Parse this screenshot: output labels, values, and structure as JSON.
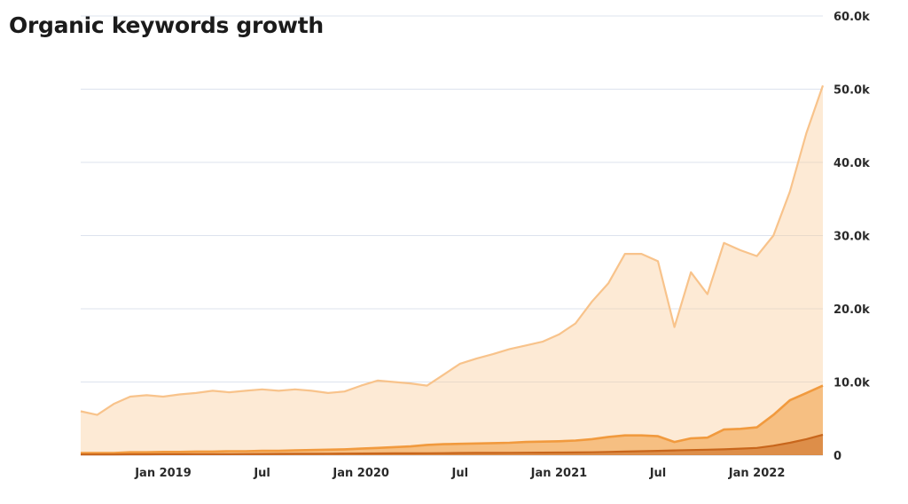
{
  "title": "Organic keywords growth",
  "chart_data": {
    "type": "area",
    "title": "Organic keywords growth",
    "xlabel": "",
    "ylabel": "",
    "ylim": [
      0,
      60000
    ],
    "grid": true,
    "y_axis_position": "right",
    "y_ticks": [
      "0",
      "10.0k",
      "20.0k",
      "30.0k",
      "40.0k",
      "50.0k",
      "60.0k"
    ],
    "x_ticks": [
      "Jan 2019",
      "Jul",
      "Jan 2020",
      "Jul",
      "Jan 2021",
      "Jul",
      "Jan 2022"
    ],
    "x_range": [
      "2018-08",
      "2022-05"
    ],
    "x": [
      "2018-08",
      "2018-09",
      "2018-10",
      "2018-11",
      "2018-12",
      "2019-01",
      "2019-02",
      "2019-03",
      "2019-04",
      "2019-05",
      "2019-06",
      "2019-07",
      "2019-08",
      "2019-09",
      "2019-10",
      "2019-11",
      "2019-12",
      "2020-01",
      "2020-02",
      "2020-03",
      "2020-04",
      "2020-05",
      "2020-06",
      "2020-07",
      "2020-08",
      "2020-09",
      "2020-10",
      "2020-11",
      "2020-12",
      "2021-01",
      "2021-02",
      "2021-03",
      "2021-04",
      "2021-05",
      "2021-06",
      "2021-07",
      "2021-08",
      "2021-09",
      "2021-10",
      "2021-11",
      "2021-12",
      "2022-01",
      "2022-02",
      "2022-03",
      "2022-04",
      "2022-05"
    ],
    "series": [
      {
        "color": "#f8c38b",
        "values": [
          6000,
          5500,
          7000,
          8000,
          8200,
          8000,
          8300,
          8500,
          8800,
          8600,
          8800,
          9000,
          8800,
          9000,
          8800,
          8500,
          8700,
          9500,
          10200,
          10000,
          9800,
          9500,
          11000,
          12500,
          13200,
          13800,
          14500,
          15000,
          15500,
          16500,
          18000,
          21000,
          23500,
          27500,
          27500,
          26500,
          17500,
          25000,
          22000,
          29000,
          28000,
          27200,
          30000,
          36000,
          44000,
          50500
        ]
      },
      {
        "color": "#f19a3e",
        "values": [
          300,
          300,
          300,
          400,
          400,
          450,
          450,
          500,
          500,
          550,
          550,
          600,
          600,
          650,
          700,
          750,
          800,
          900,
          1000,
          1100,
          1200,
          1400,
          1500,
          1550,
          1600,
          1650,
          1700,
          1800,
          1850,
          1900,
          2000,
          2200,
          2500,
          2700,
          2700,
          2600,
          1800,
          2300,
          2400,
          3500,
          3600,
          3800,
          5500,
          7500,
          8500,
          9500
        ]
      },
      {
        "color": "#c8661c",
        "values": [
          100,
          100,
          100,
          120,
          120,
          130,
          130,
          140,
          150,
          150,
          160,
          170,
          180,
          190,
          200,
          210,
          220,
          230,
          240,
          250,
          260,
          270,
          280,
          300,
          310,
          320,
          330,
          340,
          350,
          360,
          380,
          400,
          450,
          500,
          550,
          600,
          650,
          700,
          750,
          800,
          900,
          1000,
          1300,
          1700,
          2200,
          2800
        ]
      }
    ]
  }
}
